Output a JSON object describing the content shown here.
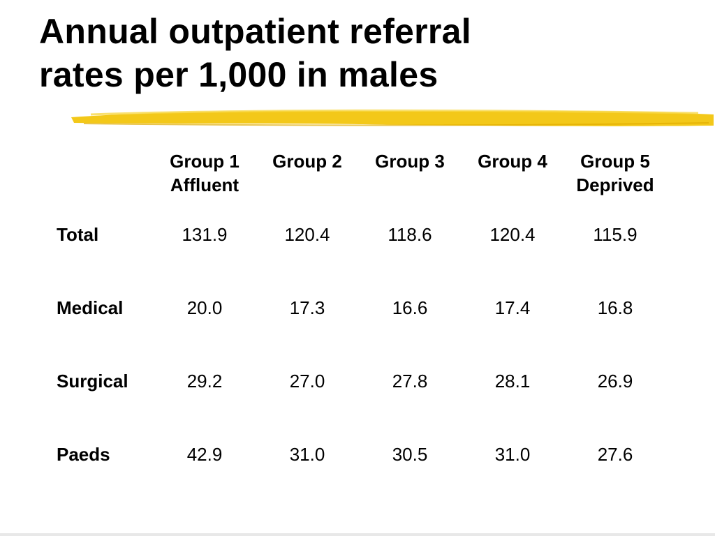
{
  "title": "Annual outpatient referral\nrates per 1,000 in males",
  "colors": {
    "highlight": "#f2c200",
    "text": "#000000"
  },
  "table": {
    "columns": [
      "Group 1\nAffluent",
      "Group 2",
      "Group 3",
      "Group 4",
      "Group 5\nDeprived"
    ],
    "rows": [
      {
        "label": "Total",
        "values": [
          "131.9",
          "120.4",
          "118.6",
          "120.4",
          "115.9"
        ]
      },
      {
        "label": "Medical",
        "values": [
          "20.0",
          "17.3",
          "16.6",
          "17.4",
          "16.8"
        ]
      },
      {
        "label": "Surgical",
        "values": [
          "29.2",
          "27.0",
          "27.8",
          "28.1",
          "26.9"
        ]
      },
      {
        "label": "Paeds",
        "values": [
          "42.9",
          "31.0",
          "30.5",
          "31.0",
          "27.6"
        ]
      }
    ]
  }
}
